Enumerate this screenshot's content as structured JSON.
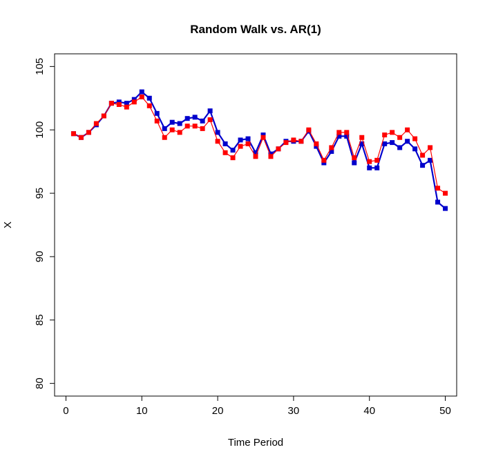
{
  "chart_data": {
    "type": "line",
    "title": "Random Walk vs. AR(1)",
    "xlabel": "Time Period",
    "ylabel": "X",
    "xlim": [
      -1.5,
      51.5
    ],
    "ylim": [
      79,
      106
    ],
    "xticks": [
      "0",
      "10",
      "20",
      "30",
      "40",
      "50"
    ],
    "yticks": [
      "80",
      "85",
      "90",
      "95",
      "100",
      "105"
    ],
    "grid": false,
    "x": [
      1,
      2,
      3,
      4,
      5,
      6,
      7,
      8,
      9,
      10,
      11,
      12,
      13,
      14,
      15,
      16,
      17,
      18,
      19,
      20,
      21,
      22,
      23,
      24,
      25,
      26,
      27,
      28,
      29,
      30,
      31,
      32,
      33,
      34,
      35,
      36,
      37,
      38,
      39,
      40,
      41,
      42,
      43,
      44,
      45,
      46,
      47,
      48,
      49,
      50
    ],
    "series": [
      {
        "color": "#0000cc",
        "values": [
          99.7,
          99.4,
          99.8,
          100.4,
          101.1,
          102.1,
          102.2,
          102.1,
          102.4,
          103.0,
          102.5,
          101.3,
          100.1,
          100.6,
          100.5,
          100.9,
          101.0,
          100.7,
          101.5,
          99.8,
          98.9,
          98.4,
          99.2,
          99.3,
          98.2,
          99.6,
          98.1,
          98.5,
          99.1,
          99.1,
          99.1,
          99.9,
          98.7,
          97.4,
          98.3,
          99.5,
          99.5,
          97.4,
          98.9,
          97.0,
          97.0,
          98.9,
          99.0,
          98.6,
          99.1,
          98.5,
          97.2,
          97.6,
          94.3,
          93.8
        ]
      },
      {
        "color": "#ff0000",
        "values": [
          99.7,
          99.4,
          99.8,
          100.5,
          101.1,
          102.1,
          102.0,
          101.8,
          102.2,
          102.6,
          101.9,
          100.7,
          99.4,
          100.0,
          99.8,
          100.3,
          100.3,
          100.1,
          100.8,
          99.1,
          98.2,
          97.8,
          98.7,
          98.9,
          97.9,
          99.4,
          97.9,
          98.5,
          99.0,
          99.2,
          99.1,
          100.0,
          98.9,
          97.6,
          98.6,
          99.8,
          99.8,
          97.8,
          99.4,
          97.5,
          97.6,
          99.6,
          99.8,
          99.4,
          100.0,
          99.3,
          98.0,
          98.6,
          95.4,
          95.0
        ]
      }
    ]
  }
}
